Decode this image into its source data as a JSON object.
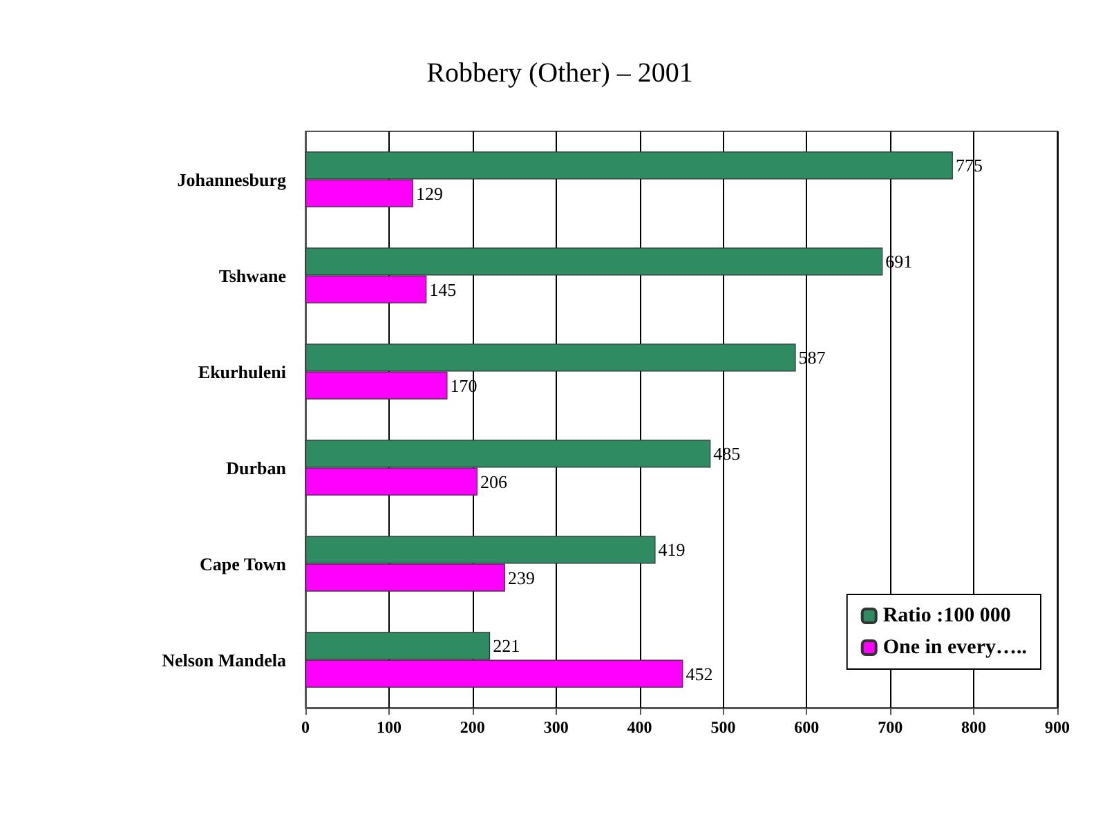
{
  "chart_data": {
    "type": "bar",
    "orientation": "horizontal",
    "title": "Robbery (Other) – 2001",
    "categories": [
      "Johannesburg",
      "Tshwane",
      "Ekurhuleni",
      "Durban",
      "Cape Town",
      "Nelson Mandela"
    ],
    "series": [
      {
        "name": "Ratio :100 000",
        "color": "#2e8b62",
        "values": [
          775,
          691,
          587,
          485,
          419,
          221
        ]
      },
      {
        "name": "One in every…..",
        "color": "#ff00ff",
        "values": [
          129,
          145,
          170,
          206,
          239,
          452
        ]
      }
    ],
    "xlim": [
      0,
      900
    ],
    "xticks": [
      0,
      100,
      200,
      300,
      400,
      500,
      600,
      700,
      800,
      900
    ],
    "grid": "x",
    "legend": "bottom right",
    "data_labels": true
  }
}
